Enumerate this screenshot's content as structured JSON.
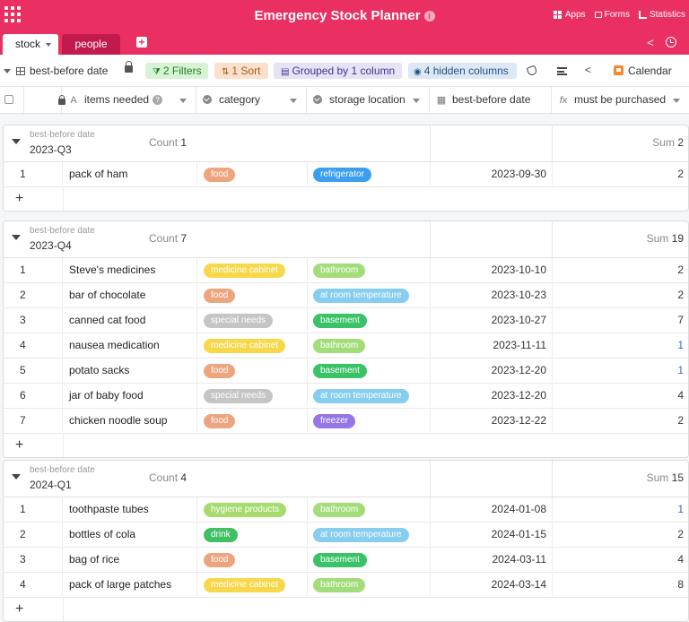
{
  "app": {
    "title": "Emergency Stock Planner",
    "apps_label": "Apps",
    "forms_label": "Forms",
    "statistics_label": "Statistics"
  },
  "tabs": [
    {
      "label": "stock",
      "active": true
    },
    {
      "label": "people",
      "active": false
    }
  ],
  "toolbar": {
    "view_label": "best-before date",
    "filters_label": "2 Filters",
    "sort_label": "1 Sort",
    "group_label": "Grouped by 1 column",
    "hidden_label": "4 hidden columns",
    "calendar_label": "Calendar"
  },
  "columns": {
    "items": "items needed",
    "category": "category",
    "location": "storage location",
    "date": "best-before date",
    "purchase": "must be purchased"
  },
  "colors": {
    "brand": "#ea2f63",
    "food": "#eda57f",
    "medicine cabinet": "#f7d84a",
    "special needs": "#c5c5c5",
    "hygiene products": "#a6dc6e",
    "drink": "#3fc062",
    "refrigerator": "#3b9ef0",
    "bathroom": "#a3dd7a",
    "at room temperature": "#86cdef",
    "basement": "#3ac267",
    "freezer": "#9675e6",
    "link_number": "#2a6ecf"
  },
  "groups": [
    {
      "label": "best-before date",
      "value": "2023-Q3",
      "count_label": "Count",
      "count": "1",
      "sum_label": "Sum",
      "sum": "2",
      "rows": [
        {
          "num": "1",
          "item": "pack of ham",
          "category": "food",
          "location": "refrigerator",
          "date": "2023-09-30",
          "qty": "2",
          "qty_link": false
        }
      ]
    },
    {
      "label": "best-before date",
      "value": "2023-Q4",
      "count_label": "Count",
      "count": "7",
      "sum_label": "Sum",
      "sum": "19",
      "rows": [
        {
          "num": "1",
          "item": "Steve's medicines",
          "category": "medicine cabinet",
          "location": "bathroom",
          "date": "2023-10-10",
          "qty": "2",
          "qty_link": false
        },
        {
          "num": "2",
          "item": "bar of chocolate",
          "category": "food",
          "location": "at room temperature",
          "date": "2023-10-23",
          "qty": "2",
          "qty_link": false
        },
        {
          "num": "3",
          "item": "canned cat food",
          "category": "special needs",
          "location": "basement",
          "date": "2023-10-27",
          "qty": "7",
          "qty_link": false
        },
        {
          "num": "4",
          "item": "nausea medication",
          "category": "medicine cabinet",
          "location": "bathroom",
          "date": "2023-11-11",
          "qty": "1",
          "qty_link": true
        },
        {
          "num": "5",
          "item": "potato sacks",
          "category": "food",
          "location": "basement",
          "date": "2023-12-20",
          "qty": "1",
          "qty_link": true
        },
        {
          "num": "6",
          "item": "jar of baby food",
          "category": "special needs",
          "location": "at room temperature",
          "date": "2023-12-20",
          "qty": "4",
          "qty_link": false
        },
        {
          "num": "7",
          "item": "chicken noodle soup",
          "category": "food",
          "location": "freezer",
          "date": "2023-12-22",
          "qty": "2",
          "qty_link": false
        }
      ]
    },
    {
      "label": "best-before date",
      "value": "2024-Q1",
      "count_label": "Count",
      "count": "4",
      "sum_label": "Sum",
      "sum": "15",
      "rows": [
        {
          "num": "1",
          "item": "toothpaste tubes",
          "category": "hygiene products",
          "location": "bathroom",
          "date": "2024-01-08",
          "qty": "1",
          "qty_link": true
        },
        {
          "num": "2",
          "item": "bottles of cola",
          "category": "drink",
          "location": "at room temperature",
          "date": "2024-01-15",
          "qty": "2",
          "qty_link": false
        },
        {
          "num": "3",
          "item": "bag of rice",
          "category": "food",
          "location": "basement",
          "date": "2024-03-11",
          "qty": "4",
          "qty_link": false
        },
        {
          "num": "4",
          "item": "pack of large patches",
          "category": "medicine cabinet",
          "location": "bathroom",
          "date": "2024-03-14",
          "qty": "8",
          "qty_link": false
        }
      ]
    }
  ]
}
